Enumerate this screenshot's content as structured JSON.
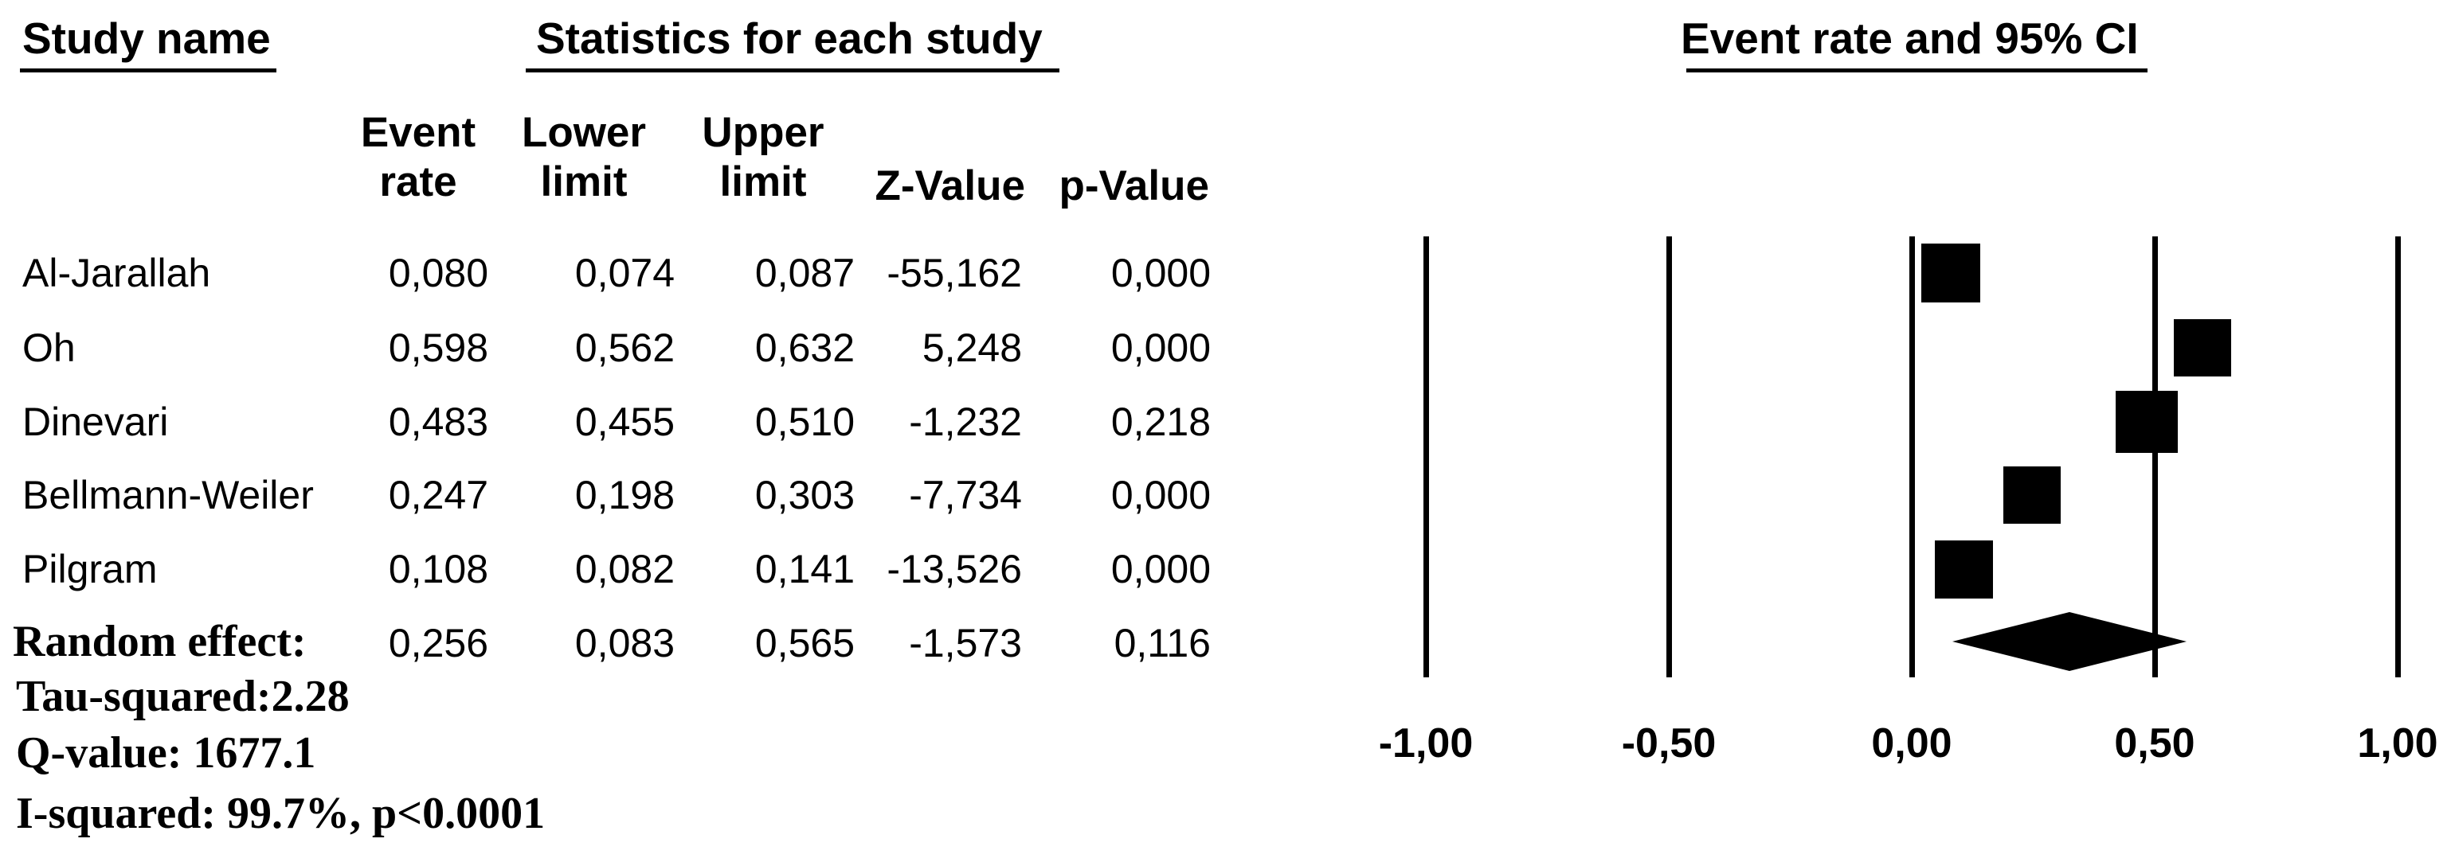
{
  "table": {
    "header_groups": {
      "study_name": "Study name",
      "statistics": "Statistics for each study"
    },
    "columns": {
      "event_rate": [
        "Event",
        "rate"
      ],
      "lower_limit": [
        "Lower",
        "limit"
      ],
      "upper_limit": [
        "Upper",
        "limit"
      ],
      "z_value": "Z-Value",
      "p_value": "p-Value"
    },
    "rows": [
      {
        "name": "Al-Jarallah",
        "event_rate": "0,080",
        "lower": "0,074",
        "upper": "0,087",
        "z": "-55,162",
        "p": "0,000"
      },
      {
        "name": "Oh",
        "event_rate": "0,598",
        "lower": "0,562",
        "upper": "0,632",
        "z": "5,248",
        "p": "0,000"
      },
      {
        "name": "Dinevari",
        "event_rate": "0,483",
        "lower": "0,455",
        "upper": "0,510",
        "z": "-1,232",
        "p": "0,218"
      },
      {
        "name": "Bellmann-Weiler",
        "event_rate": "0,247",
        "lower": "0,198",
        "upper": "0,303",
        "z": "-7,734",
        "p": "0,000"
      },
      {
        "name": "Pilgram",
        "event_rate": "0,108",
        "lower": "0,082",
        "upper": "0,141",
        "z": "-13,526",
        "p": "0,000"
      }
    ],
    "summary_row": {
      "name": "Random effect:",
      "event_rate": "0,256",
      "lower": "0,083",
      "upper": "0,565",
      "z": "-1,573",
      "p": "0,116"
    },
    "footnotes": [
      "Tau-squared:2.28",
      "Q-value: 1677.1",
      "I-squared: 99.7%, p<0.0001"
    ]
  },
  "plot": {
    "title": "Event rate and 95% CI",
    "axis_tick_labels": [
      "-1,00",
      "-0,50",
      "0,00",
      "0,50",
      "1,00"
    ]
  },
  "chart_data": {
    "type": "forest",
    "title": "Event rate and 95% CI",
    "studies": [
      "Al-Jarallah",
      "Oh",
      "Dinevari",
      "Bellmann-Weiler",
      "Pilgram"
    ],
    "event_rate": [
      0.08,
      0.598,
      0.483,
      0.247,
      0.108
    ],
    "lower_limit": [
      0.074,
      0.562,
      0.455,
      0.198,
      0.082
    ],
    "upper_limit": [
      0.087,
      0.632,
      0.51,
      0.303,
      0.141
    ],
    "z_value": [
      -55.162,
      5.248,
      -1.232,
      -7.734,
      -13.526
    ],
    "p_value": [
      0.0,
      0.0,
      0.218,
      0.0,
      0.0
    ],
    "summary": {
      "label": "Random effect:",
      "event_rate": 0.256,
      "lower_limit": 0.083,
      "upper_limit": 0.565,
      "z_value": -1.573,
      "p_value": 0.116
    },
    "heterogeneity": {
      "tau_squared": 2.28,
      "q_value": 1677.1,
      "i_squared_pct": 99.7,
      "p_text": "p<0.0001"
    },
    "xlim": [
      -1,
      1
    ],
    "x_ticks": [
      -1,
      -0.5,
      0,
      0.5,
      1
    ],
    "marker_sizes_px": [
      74,
      72,
      78,
      72,
      73
    ],
    "marker_shape": "square",
    "summary_shape": "diamond",
    "grid": "vertical-lines-at-ticks",
    "legend": "none"
  }
}
